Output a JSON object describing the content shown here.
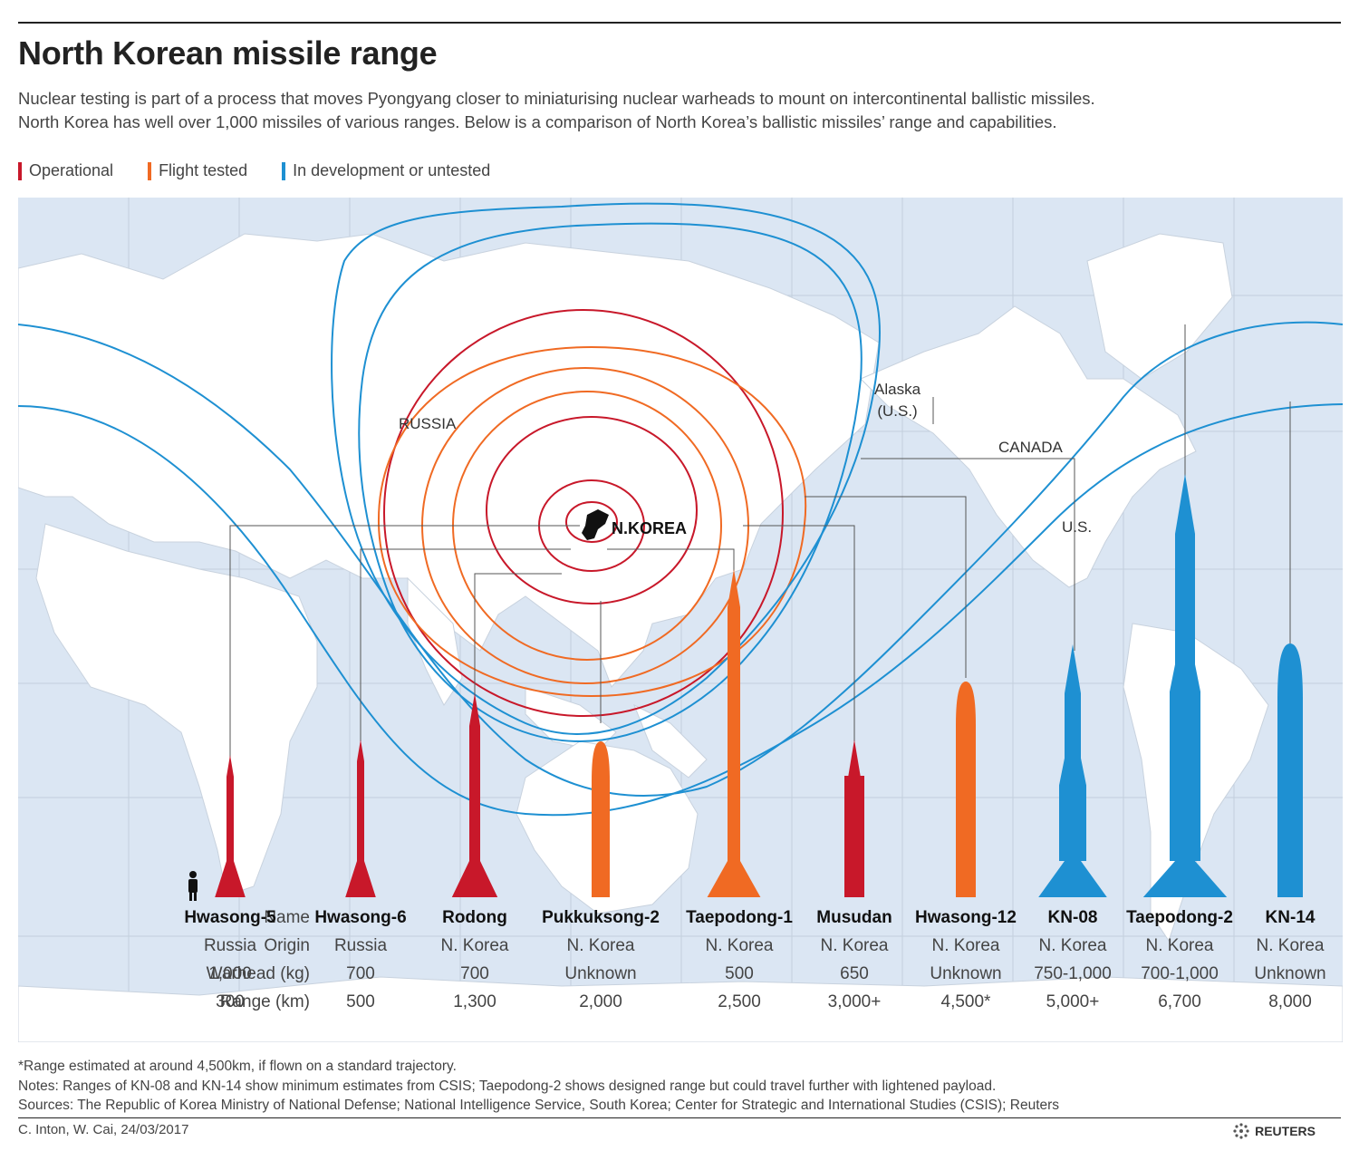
{
  "header": {
    "title": "North Korean missile range",
    "subtitle_line1": "Nuclear testing is part of a process that moves Pyongyang closer to miniaturising nuclear warheads to mount on intercontinental ballistic missiles.",
    "subtitle_line2": "North Korea has well over 1,000 missiles of various ranges. Below is a comparison of North Korea’s ballistic missiles’ range and capabilities."
  },
  "legend": [
    {
      "label": "Operational",
      "color": "#c8182a"
    },
    {
      "label": "Flight tested",
      "color": "#f06a23"
    },
    {
      "label": "In development or untested",
      "color": "#1e90d2"
    }
  ],
  "map_labels": {
    "russia": "RUSSIA",
    "alaska_line1": "Alaska",
    "alaska_line2": "(U.S.)",
    "canada": "CANADA",
    "us": "U.S.",
    "nkorea": "N.KOREA"
  },
  "table": {
    "row_labels": {
      "name": "Name",
      "origin": "Origin",
      "warhead": "Warhead (kg)",
      "range": "Range (km)"
    }
  },
  "missiles": [
    {
      "name": "Hwasong-5",
      "origin": "Russia",
      "warhead": "1,000",
      "range": "300",
      "range_km": 300,
      "status": "Operational",
      "color": "#c8182a"
    },
    {
      "name": "Hwasong-6",
      "origin": "Russia",
      "warhead": "700",
      "range": "500",
      "range_km": 500,
      "status": "Operational",
      "color": "#c8182a"
    },
    {
      "name": "Rodong",
      "origin": "N. Korea",
      "warhead": "700",
      "range": "1,300",
      "range_km": 1300,
      "status": "Operational",
      "color": "#c8182a"
    },
    {
      "name": "Pukkuksong-2",
      "origin": "N. Korea",
      "warhead": "Unknown",
      "range": "2,000",
      "range_km": 2000,
      "status": "Flight tested",
      "color": "#f06a23"
    },
    {
      "name": "Taepodong-1",
      "origin": "N. Korea",
      "warhead": "500",
      "range": "2,500",
      "range_km": 2500,
      "status": "Flight tested",
      "color": "#f06a23"
    },
    {
      "name": "Musudan",
      "origin": "N. Korea",
      "warhead": "650",
      "range": "3,000+",
      "range_km": 3000,
      "status": "Operational",
      "color": "#c8182a"
    },
    {
      "name": "Hwasong-12",
      "origin": "N. Korea",
      "warhead": "Unknown",
      "range": "4,500*",
      "range_km": 4500,
      "status": "Flight tested",
      "color": "#f06a23"
    },
    {
      "name": "KN-08",
      "origin": "N. Korea",
      "warhead": "750-1,000",
      "range": "5,000+",
      "range_km": 5000,
      "status": "In development or untested",
      "color": "#1e90d2"
    },
    {
      "name": "Taepodong-2",
      "origin": "N. Korea",
      "warhead": "700-1,000",
      "range": "6,700",
      "range_km": 6700,
      "status": "In development or untested",
      "color": "#1e90d2"
    },
    {
      "name": "KN-14",
      "origin": "N. Korea",
      "warhead": "Unknown",
      "range": "8,000",
      "range_km": 8000,
      "status": "In development or untested",
      "color": "#1e90d2"
    }
  ],
  "footnotes": {
    "asterisk": "*Range estimated at around 4,500km, if flown on a standard trajectory.",
    "notes": "Notes: Ranges of KN-08 and KN-14 show minimum estimates from CSIS; Taepodong-2 shows designed range but could travel further with lightened payload.",
    "sources": "Sources: The Republic of Korea Ministry of National Defense; National Intelligence Service, South Korea; Center for Strategic and International Studies (CSIS); Reuters"
  },
  "credit": "C. Inton,  W. Cai, 24/03/2017",
  "brand": "REUTERS"
}
